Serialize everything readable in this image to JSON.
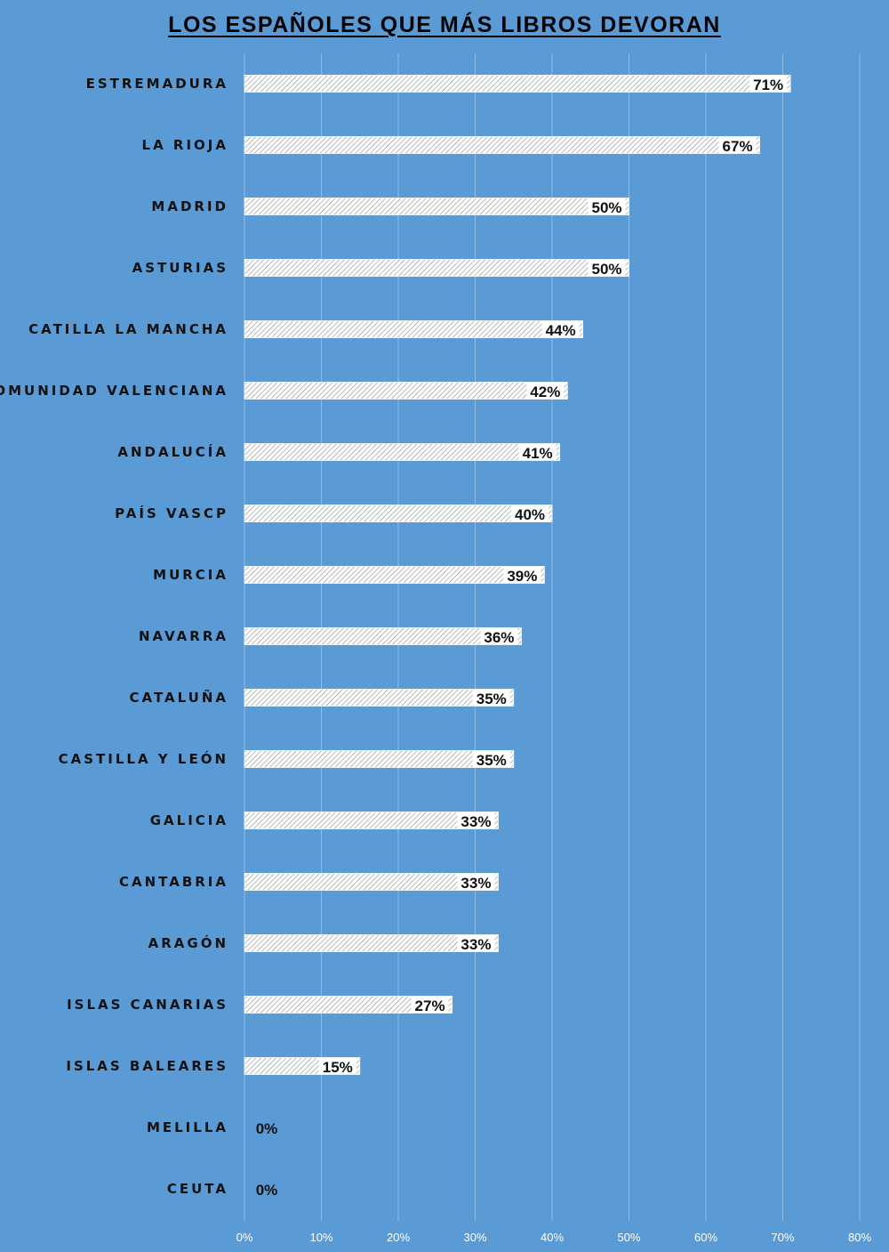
{
  "chart_data": {
    "type": "bar",
    "orientation": "horizontal",
    "title": "LOS ESPAÑOLES QUE MÁS LIBROS DEVORAN",
    "categories": [
      "ESTREMADURA",
      "LA RIOJA",
      "MADRID",
      "ASTURIAS",
      "CATILLA LA MANCHA",
      "COMUNIDAD VALENCIANA",
      "ANDALUCÍA",
      "PAÍS VASCP",
      "MURCIA",
      "NAVARRA",
      "CATALUÑA",
      "CASTILLA Y LEÓN",
      "GALICIA",
      "CANTABRIA",
      "ARAGÓN",
      "ISLAS CANARIAS",
      "ISLAS BALEARES",
      "MELILLA",
      "CEUTA"
    ],
    "values": [
      71,
      67,
      50,
      50,
      44,
      42,
      41,
      40,
      39,
      36,
      35,
      35,
      33,
      33,
      33,
      27,
      15,
      0,
      0
    ],
    "data_labels": [
      "71%",
      "67%",
      "50%",
      "50%",
      "44%",
      "42%",
      "41%",
      "40%",
      "39%",
      "36%",
      "35%",
      "35%",
      "33%",
      "33%",
      "33%",
      "27%",
      "15%",
      "0%",
      "0%"
    ],
    "xlim": [
      0,
      80
    ],
    "x_ticks": [
      "0%",
      "10%",
      "20%",
      "30%",
      "40%",
      "50%",
      "60%",
      "70%",
      "80%"
    ],
    "grid": true,
    "legend": "none",
    "colors": {
      "background": "#5b9bd5",
      "bar_fill": "#ffffff",
      "bar_hatch": "#8a8a8a",
      "gridline": "#8fbbe6",
      "label_box": "#ffffff"
    }
  }
}
